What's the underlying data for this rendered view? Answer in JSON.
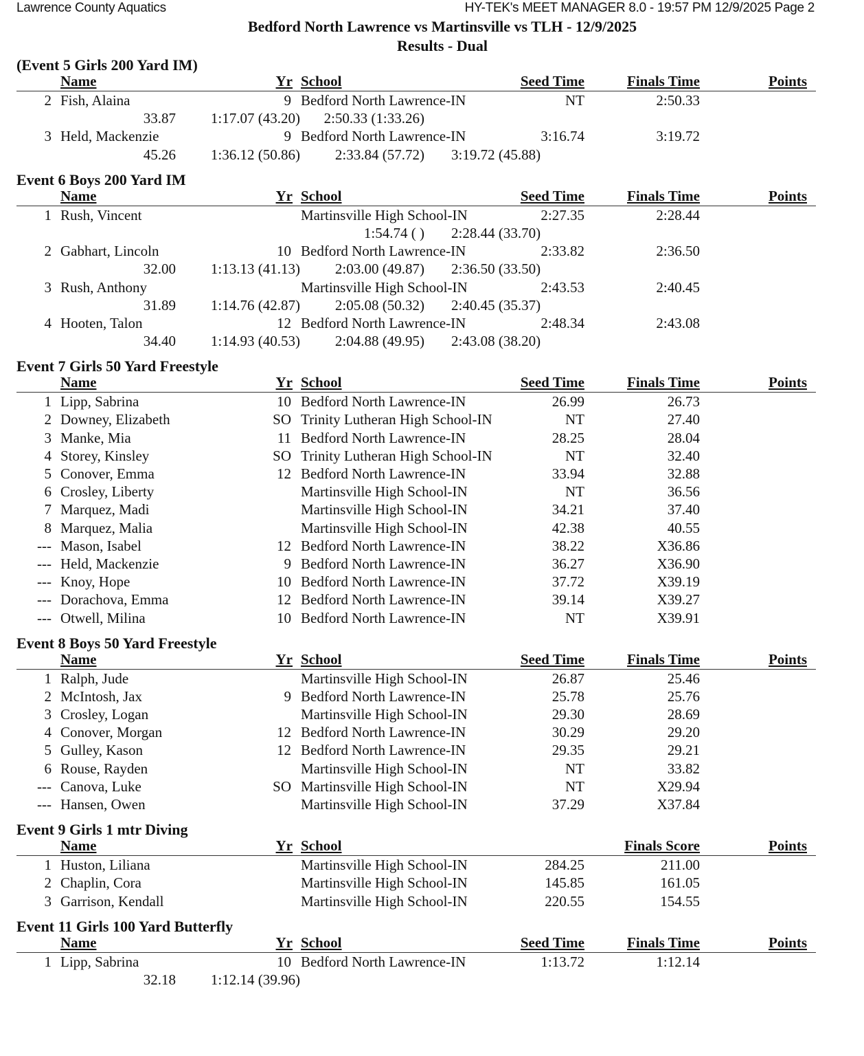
{
  "header": {
    "org": "Lawrence County Aquatics",
    "software": "HY-TEK's MEET MANAGER 8.0 - 19:57 PM  12/9/2025  Page 2",
    "title": "Bedford North Lawrence vs Martinsville vs TLH - 12/9/2025",
    "subtitle": "Results - Dual"
  },
  "columns": {
    "name": "Name",
    "yr": "Yr",
    "school": "School",
    "seed": "Seed Time",
    "finals": "Finals Time",
    "finals_score": "Finals Score",
    "points": "Points"
  },
  "events": [
    {
      "title": "(Event 5  Girls 200 Yard IM)",
      "finals_col": "Finals Time",
      "show_seed_header": true,
      "rows": [
        {
          "place": "2",
          "name": "Fish, Alaina",
          "yr": "9",
          "school": "Bedford North Lawrence-IN",
          "seed": "NT",
          "finals": "2:50.33",
          "splits": [
            "33.87",
            "1:17.07 (43.20)",
            "2:50.33 (1:33.26)",
            ""
          ]
        },
        {
          "place": "3",
          "name": "Held, Mackenzie",
          "yr": "9",
          "school": "Bedford North Lawrence-IN",
          "seed": "3:16.74",
          "finals": "3:19.72",
          "splits": [
            "45.26",
            "1:36.12 (50.86)",
            "2:33.84 (57.72)",
            "3:19.72 (45.88)"
          ]
        }
      ]
    },
    {
      "title": "Event 6  Boys 200 Yard IM",
      "finals_col": "Finals Time",
      "show_seed_header": true,
      "rows": [
        {
          "place": "1",
          "name": "Rush, Vincent",
          "yr": "",
          "school": "Martinsville High School-IN",
          "seed": "2:27.35",
          "finals": "2:28.44",
          "splits": [
            "",
            "",
            "1:54.74 ( )",
            "2:28.44 (33.70)"
          ]
        },
        {
          "place": "2",
          "name": "Gabhart, Lincoln",
          "yr": "10",
          "school": "Bedford North Lawrence-IN",
          "seed": "2:33.82",
          "finals": "2:36.50",
          "splits": [
            "32.00",
            "1:13.13 (41.13)",
            "2:03.00 (49.87)",
            "2:36.50 (33.50)"
          ]
        },
        {
          "place": "3",
          "name": "Rush, Anthony",
          "yr": "",
          "school": "Martinsville High School-IN",
          "seed": "2:43.53",
          "finals": "2:40.45",
          "splits": [
            "31.89",
            "1:14.76 (42.87)",
            "2:05.08 (50.32)",
            "2:40.45 (35.37)"
          ]
        },
        {
          "place": "4",
          "name": "Hooten, Talon",
          "yr": "12",
          "school": "Bedford North Lawrence-IN",
          "seed": "2:48.34",
          "finals": "2:43.08",
          "splits": [
            "34.40",
            "1:14.93 (40.53)",
            "2:04.88 (49.95)",
            "2:43.08 (38.20)"
          ]
        }
      ]
    },
    {
      "title": "Event 7  Girls 50 Yard Freestyle",
      "finals_col": "Finals Time",
      "show_seed_header": true,
      "rows": [
        {
          "place": "1",
          "name": "Lipp, Sabrina",
          "yr": "10",
          "school": "Bedford North Lawrence-IN",
          "seed": "26.99",
          "finals": "26.73"
        },
        {
          "place": "2",
          "name": "Downey, Elizabeth",
          "yr": "SO",
          "school": "Trinity Lutheran High School-IN",
          "seed": "NT",
          "finals": "27.40"
        },
        {
          "place": "3",
          "name": "Manke, Mia",
          "yr": "11",
          "school": "Bedford North Lawrence-IN",
          "seed": "28.25",
          "finals": "28.04"
        },
        {
          "place": "4",
          "name": "Storey, Kinsley",
          "yr": "SO",
          "school": "Trinity Lutheran High School-IN",
          "seed": "NT",
          "finals": "32.40"
        },
        {
          "place": "5",
          "name": "Conover, Emma",
          "yr": "12",
          "school": "Bedford North Lawrence-IN",
          "seed": "33.94",
          "finals": "32.88"
        },
        {
          "place": "6",
          "name": "Crosley, Liberty",
          "yr": "",
          "school": "Martinsville High School-IN",
          "seed": "NT",
          "finals": "36.56"
        },
        {
          "place": "7",
          "name": "Marquez, Madi",
          "yr": "",
          "school": "Martinsville High School-IN",
          "seed": "34.21",
          "finals": "37.40"
        },
        {
          "place": "8",
          "name": "Marquez, Malia",
          "yr": "",
          "school": "Martinsville High School-IN",
          "seed": "42.38",
          "finals": "40.55"
        },
        {
          "place": "---",
          "name": "Mason, Isabel",
          "yr": "12",
          "school": "Bedford North Lawrence-IN",
          "seed": "38.22",
          "finals": "X36.86"
        },
        {
          "place": "---",
          "name": "Held, Mackenzie",
          "yr": "9",
          "school": "Bedford North Lawrence-IN",
          "seed": "36.27",
          "finals": "X36.90"
        },
        {
          "place": "---",
          "name": "Knoy, Hope",
          "yr": "10",
          "school": "Bedford North Lawrence-IN",
          "seed": "37.72",
          "finals": "X39.19"
        },
        {
          "place": "---",
          "name": "Dorachova, Emma",
          "yr": "12",
          "school": "Bedford North Lawrence-IN",
          "seed": "39.14",
          "finals": "X39.27"
        },
        {
          "place": "---",
          "name": "Otwell, Milina",
          "yr": "10",
          "school": "Bedford North Lawrence-IN",
          "seed": "NT",
          "finals": "X39.91"
        }
      ]
    },
    {
      "title": "Event 8  Boys 50 Yard Freestyle",
      "finals_col": "Finals Time",
      "show_seed_header": true,
      "rows": [
        {
          "place": "1",
          "name": "Ralph, Jude",
          "yr": "",
          "school": "Martinsville High School-IN",
          "seed": "26.87",
          "finals": "25.46"
        },
        {
          "place": "2",
          "name": "McIntosh, Jax",
          "yr": "9",
          "school": "Bedford North Lawrence-IN",
          "seed": "25.78",
          "finals": "25.76"
        },
        {
          "place": "3",
          "name": "Crosley, Logan",
          "yr": "",
          "school": "Martinsville High School-IN",
          "seed": "29.30",
          "finals": "28.69"
        },
        {
          "place": "4",
          "name": "Conover, Morgan",
          "yr": "12",
          "school": "Bedford North Lawrence-IN",
          "seed": "30.29",
          "finals": "29.20"
        },
        {
          "place": "5",
          "name": "Gulley, Kason",
          "yr": "12",
          "school": "Bedford North Lawrence-IN",
          "seed": "29.35",
          "finals": "29.21"
        },
        {
          "place": "6",
          "name": "Rouse, Rayden",
          "yr": "",
          "school": "Martinsville High School-IN",
          "seed": "NT",
          "finals": "33.82"
        },
        {
          "place": "---",
          "name": "Canova, Luke",
          "yr": "SO",
          "school": "Martinsville High School-IN",
          "seed": "NT",
          "finals": "X29.94"
        },
        {
          "place": "---",
          "name": "Hansen, Owen",
          "yr": "",
          "school": "Martinsville High School-IN",
          "seed": "37.29",
          "finals": "X37.84"
        }
      ]
    },
    {
      "title": "Event 9  Girls 1 mtr Diving",
      "finals_col": "Finals Score",
      "show_seed_header": false,
      "rows": [
        {
          "place": "1",
          "name": "Huston, Liliana",
          "yr": "",
          "school": "Martinsville High School-IN",
          "seed": "284.25",
          "finals": "211.00"
        },
        {
          "place": "2",
          "name": "Chaplin, Cora",
          "yr": "",
          "school": "Martinsville High School-IN",
          "seed": "145.85",
          "finals": "161.05"
        },
        {
          "place": "3",
          "name": "Garrison, Kendall",
          "yr": "",
          "school": "Martinsville High School-IN",
          "seed": "220.55",
          "finals": "154.55"
        }
      ]
    },
    {
      "title": "Event 11  Girls 100 Yard Butterfly",
      "finals_col": "Finals Time",
      "show_seed_header": true,
      "rows": [
        {
          "place": "1",
          "name": "Lipp, Sabrina",
          "yr": "10",
          "school": "Bedford North Lawrence-IN",
          "seed": "1:13.72",
          "finals": "1:12.14",
          "splits": [
            "32.18",
            "1:12.14 (39.96)",
            "",
            ""
          ]
        }
      ]
    }
  ]
}
